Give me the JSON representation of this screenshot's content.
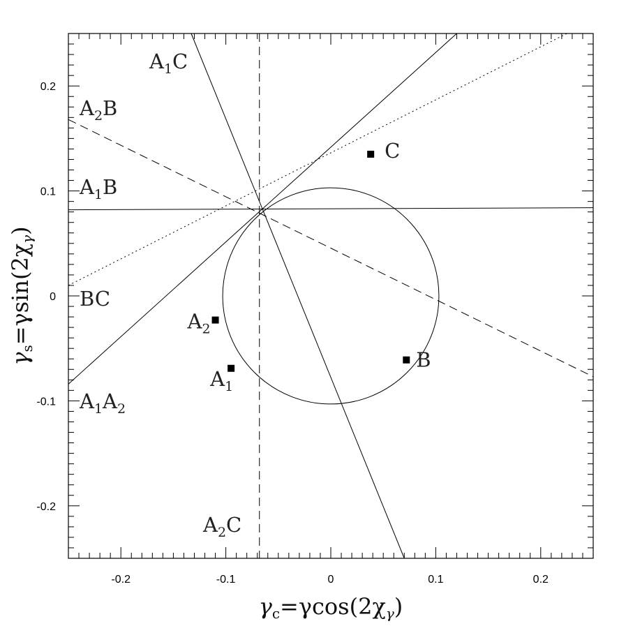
{
  "chart_data": {
    "type": "scatter",
    "title": "",
    "xlabel": {
      "main": "γ",
      "sub": "c",
      "rest": "=γcos(2χ",
      "sub2": "γ",
      "end": ")"
    },
    "ylabel": {
      "main": "γ",
      "sub": "s",
      "rest": "=γsin(2χ",
      "sub2": "γ",
      "end": ")"
    },
    "xlim": [
      -0.25,
      0.25
    ],
    "ylim": [
      -0.25,
      0.25
    ],
    "xticks": [
      {
        "value": -0.2,
        "label": "-0.2"
      },
      {
        "value": -0.1,
        "label": "-0.1"
      },
      {
        "value": 0,
        "label": "0"
      },
      {
        "value": 0.1,
        "label": "0.1"
      },
      {
        "value": 0.2,
        "label": "0.2"
      }
    ],
    "yticks": [
      {
        "value": -0.2,
        "label": "-0.2"
      },
      {
        "value": -0.1,
        "label": "-0.1"
      },
      {
        "value": 0,
        "label": "0"
      },
      {
        "value": 0.1,
        "label": "0.1"
      },
      {
        "value": 0.2,
        "label": "0.2"
      }
    ],
    "minor_tick_step": 0.01,
    "points": [
      {
        "name": "A1",
        "label": {
          "base": "A",
          "sub": "1",
          "tail": ""
        },
        "x": -0.095,
        "y": -0.069
      },
      {
        "name": "A2",
        "label": {
          "base": "A",
          "sub": "2",
          "tail": ""
        },
        "x": -0.11,
        "y": -0.023
      },
      {
        "name": "B",
        "label": {
          "base": "B",
          "sub": "",
          "tail": ""
        },
        "x": 0.072,
        "y": -0.061
      },
      {
        "name": "C",
        "label": {
          "base": "C",
          "sub": "",
          "tail": ""
        },
        "x": 0.038,
        "y": 0.135
      }
    ],
    "circle": {
      "cx": 0,
      "cy": 0,
      "r": 0.103
    },
    "lines": [
      {
        "name": "A1C",
        "style": "solid",
        "from": [
          -0.133,
          0.25
        ],
        "to": [
          0.07,
          -0.25
        ],
        "label": {
          "base": "A",
          "sub": "1",
          "tail": "C"
        }
      },
      {
        "name": "A2B",
        "style": "dashed",
        "from": [
          -0.25,
          0.168
        ],
        "to": [
          0.25,
          -0.077
        ],
        "label": {
          "base": "A",
          "sub": "2",
          "tail": "B"
        }
      },
      {
        "name": "A1B",
        "style": "solid",
        "from": [
          -0.25,
          0.082
        ],
        "to": [
          0.25,
          0.084
        ],
        "label": {
          "base": "A",
          "sub": "1",
          "tail": "B"
        }
      },
      {
        "name": "BC",
        "style": "dotted",
        "from": [
          -0.25,
          0.01
        ],
        "to": [
          0.225,
          0.25
        ],
        "label": {
          "base": "BC",
          "sub": "",
          "tail": ""
        }
      },
      {
        "name": "A1A2",
        "style": "solid",
        "from": [
          -0.25,
          -0.084
        ],
        "to": [
          0.12,
          0.25
        ],
        "label": {
          "base": "A",
          "sub": "1",
          "tail": "A",
          "sub2": "2"
        }
      },
      {
        "name": "A2C",
        "style": "dashed",
        "from": [
          -0.068,
          0.25
        ],
        "to": [
          -0.068,
          -0.25
        ],
        "label": {
          "base": "A",
          "sub": "2",
          "tail": "C"
        }
      }
    ]
  }
}
